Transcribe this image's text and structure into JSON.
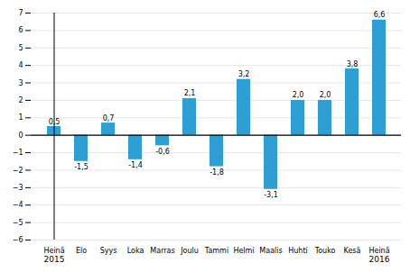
{
  "chart_data": {
    "type": "bar",
    "categories": [
      "Heinä",
      "Elo",
      "Syys",
      "Loka",
      "Marras",
      "Joulu",
      "Tammi",
      "Helmi",
      "Maalis",
      "Huhti",
      "Touko",
      "Kesä",
      "Heinä"
    ],
    "values": [
      0.5,
      -1.5,
      0.7,
      -1.4,
      -0.6,
      2.1,
      -1.8,
      3.2,
      -3.1,
      2.0,
      2.0,
      3.8,
      6.6
    ],
    "value_labels": [
      "0,5",
      "-1,5",
      "0,7",
      "-1,4",
      "-0,6",
      "2,1",
      "-1,8",
      "3,2",
      "-3,1",
      "2,0",
      "2,0",
      "3,8",
      "6,6"
    ],
    "data_labels": true,
    "color": "#2e9fd4",
    "ylim": [
      -6,
      7
    ],
    "yticks": [
      -6,
      -5,
      -4,
      -3,
      -2,
      -1,
      0,
      1,
      2,
      3,
      4,
      5,
      6,
      7
    ],
    "grid": true,
    "annotations": [
      {
        "text": "2015",
        "x": 0
      },
      {
        "text": "2016",
        "x": 12
      }
    ]
  }
}
